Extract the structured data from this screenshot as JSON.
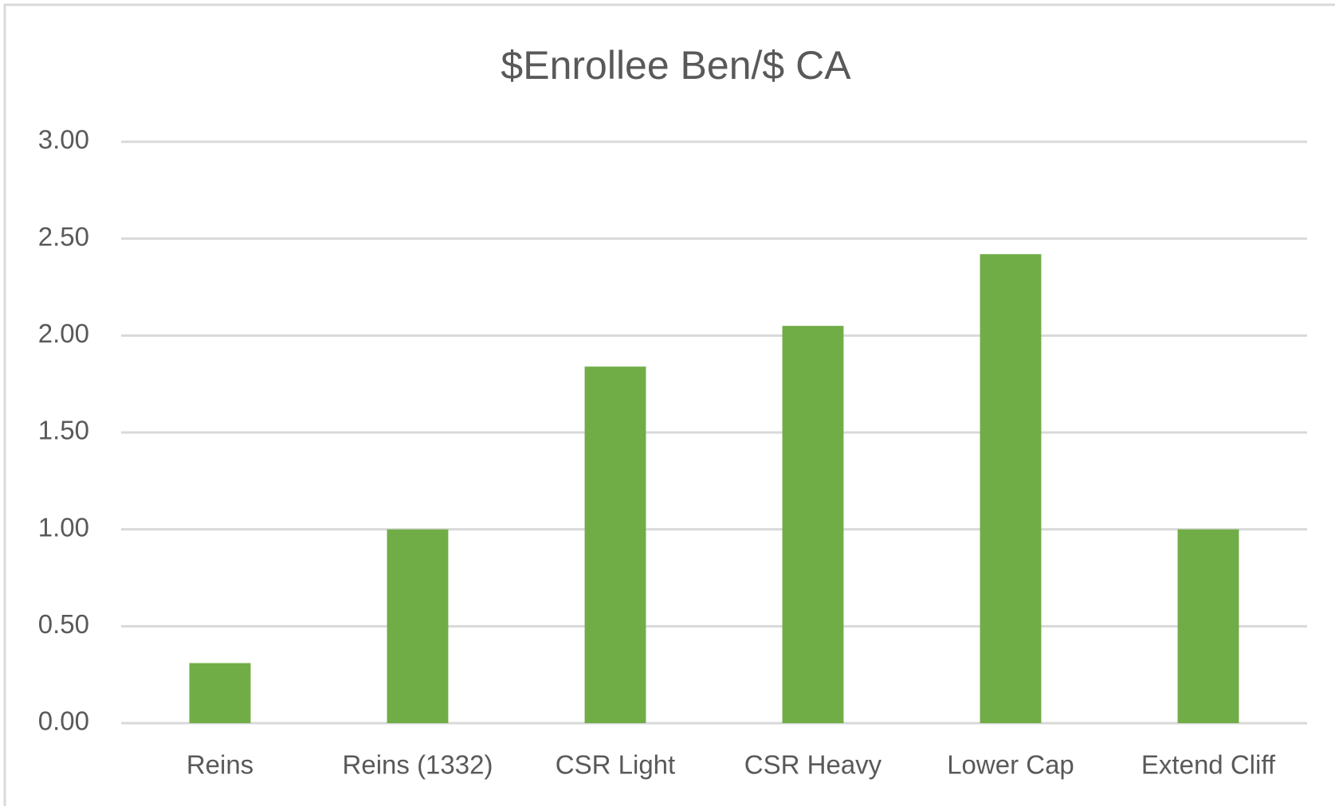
{
  "chart_data": {
    "type": "bar",
    "title": "$Enrollee Ben/$ CA",
    "categories": [
      "Reins",
      "Reins (1332)",
      "CSR Light",
      "CSR Heavy",
      "Lower Cap",
      "Extend Cliff"
    ],
    "values": [
      0.31,
      1.0,
      1.84,
      2.05,
      2.42,
      1.0
    ],
    "color": "#70ad47",
    "ylim": [
      0,
      3
    ],
    "yticks": [
      {
        "value": 0,
        "label": "0.00"
      },
      {
        "value": 0.5,
        "label": "0.50"
      },
      {
        "value": 1,
        "label": "1.00"
      },
      {
        "value": 1.5,
        "label": "1.50"
      },
      {
        "value": 2,
        "label": "2.00"
      },
      {
        "value": 2.5,
        "label": "2.50"
      },
      {
        "value": 3,
        "label": "3.00"
      }
    ],
    "grid": true
  }
}
